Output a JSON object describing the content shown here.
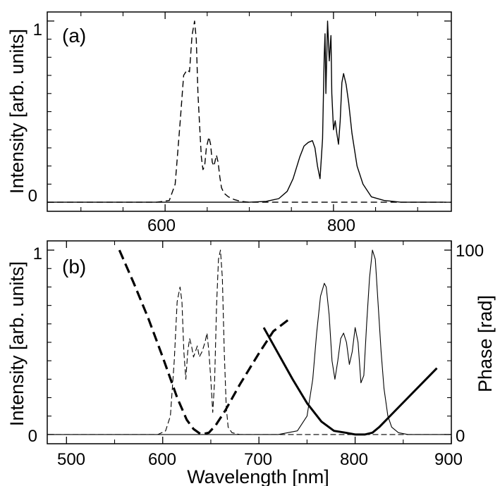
{
  "chart_data": [
    {
      "panel": "(a)",
      "type": "line",
      "xlabel": "",
      "ylabel": "Intensity [arb. units]",
      "xlim": [
        460,
        940
      ],
      "ylim": [
        -0.05,
        1.05
      ],
      "x_ticks_labeled": [
        "600",
        "800"
      ],
      "y_ticks_labeled": [
        "0",
        "1"
      ],
      "series": [
        {
          "style": "dashed",
          "x": [
            460,
            590,
            605,
            612,
            618,
            622,
            626,
            629,
            632,
            635,
            637,
            639,
            641,
            643,
            645,
            647,
            649,
            652,
            654,
            656,
            658,
            661,
            663,
            665,
            667,
            670,
            675,
            682,
            690,
            700,
            720,
            940
          ],
          "y": [
            0,
            0,
            0.01,
            0.1,
            0.45,
            0.7,
            0.73,
            0.72,
            0.92,
            1.0,
            0.9,
            0.6,
            0.42,
            0.25,
            0.18,
            0.2,
            0.3,
            0.36,
            0.32,
            0.22,
            0.2,
            0.26,
            0.22,
            0.14,
            0.08,
            0.05,
            0.03,
            0.015,
            0.005,
            0,
            0,
            0
          ]
        },
        {
          "style": "solid",
          "x": [
            460,
            700,
            720,
            735,
            745,
            752,
            760,
            765,
            770,
            775,
            778,
            781,
            784,
            787,
            789,
            790,
            791,
            793,
            795,
            797,
            798,
            800,
            802,
            804,
            806,
            808,
            810,
            812,
            815,
            818,
            822,
            828,
            835,
            845,
            860,
            880,
            930
          ],
          "y": [
            0,
            0,
            0.005,
            0.02,
            0.06,
            0.13,
            0.25,
            0.31,
            0.33,
            0.34,
            0.3,
            0.2,
            0.13,
            0.35,
            0.8,
            0.93,
            0.6,
            1.0,
            0.78,
            0.92,
            0.6,
            0.4,
            0.45,
            0.38,
            0.32,
            0.45,
            0.66,
            0.71,
            0.65,
            0.55,
            0.38,
            0.2,
            0.1,
            0.03,
            0.01,
            0,
            0
          ]
        }
      ]
    },
    {
      "panel": "(b)",
      "type": "line",
      "xlabel": "Wavelength [nm]",
      "ylabel": "Intensity [arb. units]",
      "ylabel_right": "Phase [rad]",
      "xlim": [
        480,
        900
      ],
      "ylim": [
        -0.05,
        1.05
      ],
      "ylim_right": [
        -5,
        105
      ],
      "x_ticks_labeled": [
        "500",
        "600",
        "700",
        "800",
        "900"
      ],
      "y_ticks_labeled": [
        "0",
        "1"
      ],
      "y_right_ticks_labeled": [
        "0",
        "100"
      ],
      "series": [
        {
          "style": "thin-dashed",
          "axis": "left",
          "x": [
            480,
            595,
            603,
            608,
            612,
            615,
            618,
            620,
            622,
            624,
            626,
            628,
            630,
            632,
            634,
            636,
            638,
            641,
            644,
            646,
            648,
            650,
            652,
            654,
            656,
            658,
            660,
            662,
            664,
            666,
            668,
            672,
            680,
            690,
            900
          ],
          "y": [
            0,
            0,
            0.02,
            0.1,
            0.4,
            0.72,
            0.8,
            0.72,
            0.45,
            0.3,
            0.45,
            0.52,
            0.48,
            0.42,
            0.45,
            0.48,
            0.42,
            0.45,
            0.5,
            0.55,
            0.45,
            0.3,
            0.12,
            0.3,
            0.7,
            0.95,
            1.0,
            0.85,
            0.45,
            0.15,
            0.04,
            0.01,
            0,
            0,
            0
          ]
        },
        {
          "style": "thin-solid",
          "axis": "left",
          "x": [
            480,
            720,
            740,
            750,
            756,
            760,
            764,
            768,
            770,
            773,
            776,
            779,
            782,
            785,
            788,
            791,
            794,
            797,
            800,
            803,
            806,
            809,
            812,
            815,
            818,
            821,
            824,
            827,
            830,
            834,
            838,
            845,
            855,
            900
          ],
          "y": [
            0,
            0,
            0.02,
            0.1,
            0.3,
            0.55,
            0.75,
            0.82,
            0.8,
            0.65,
            0.4,
            0.3,
            0.4,
            0.52,
            0.55,
            0.5,
            0.38,
            0.45,
            0.58,
            0.5,
            0.28,
            0.32,
            0.6,
            0.85,
            1.0,
            0.95,
            0.7,
            0.45,
            0.25,
            0.1,
            0.04,
            0.01,
            0,
            0
          ]
        },
        {
          "style": "thick-dashed",
          "axis": "right",
          "x": [
            555,
            570,
            585,
            600,
            615,
            625,
            632,
            640,
            648,
            655,
            665,
            680,
            700,
            715,
            730
          ],
          "y": [
            100,
            82,
            63,
            42,
            20,
            8,
            3,
            0,
            1,
            5,
            13,
            27,
            44,
            56,
            62
          ]
        },
        {
          "style": "thick-solid",
          "axis": "right",
          "x": [
            705,
            720,
            735,
            750,
            765,
            778,
            790,
            800,
            810,
            818,
            825,
            840,
            855,
            870,
            885
          ],
          "y": [
            58,
            44,
            30,
            17,
            7,
            2,
            1,
            0,
            0,
            1,
            4,
            12,
            20,
            28,
            36
          ]
        }
      ]
    }
  ]
}
